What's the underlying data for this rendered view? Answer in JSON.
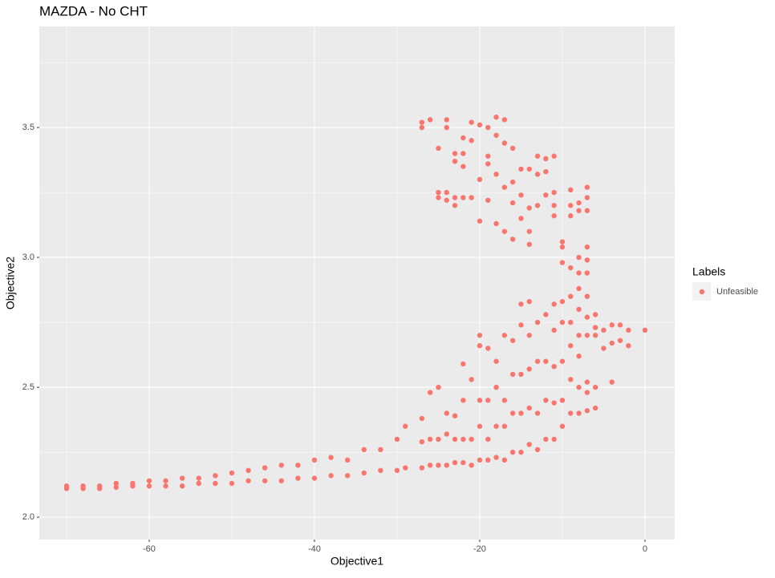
{
  "chart_data": {
    "type": "scatter",
    "title": "MAZDA - No CHT",
    "xlabel": "Objective1",
    "ylabel": "Objective2",
    "legend_title": "Labels",
    "legend_position": "right",
    "grid": true,
    "xlim": [
      -73.3,
      3.6
    ],
    "ylim": [
      1.914,
      3.889
    ],
    "xticks": [
      -60,
      -40,
      -20,
      0
    ],
    "yticks": [
      {
        "value": 2.0,
        "label": "2.0"
      },
      {
        "value": 2.5,
        "label": "2.5"
      },
      {
        "value": 3.0,
        "label": "3.0"
      },
      {
        "value": 3.5,
        "label": "3.5"
      }
    ],
    "xminor": [
      -70,
      -50,
      -30,
      -10
    ],
    "yminor": [
      2.25,
      2.75,
      3.25,
      3.75
    ],
    "series": [
      {
        "name": "Unfeasible",
        "color": "#F8766D",
        "x": [
          -70,
          -70,
          -68,
          -68,
          -66,
          -66,
          -64,
          -64,
          -62,
          -62,
          -60,
          -60,
          -58,
          -58,
          -56,
          -56,
          -54,
          -54,
          -52,
          -52,
          -50,
          -50,
          -48,
          -48,
          -46,
          -46,
          -44,
          -44,
          -42,
          -42,
          -40,
          -40,
          -38,
          -38,
          -36,
          -36,
          -34,
          -34,
          -32,
          -32,
          -30,
          -30,
          -29,
          -29,
          -27,
          -27,
          -27,
          -26,
          -26,
          -26,
          -25,
          -25,
          -25,
          -24,
          -24,
          -24,
          -23,
          -23,
          -23,
          -22,
          -22,
          -22,
          -22,
          -21,
          -21,
          -21,
          -20,
          -20,
          -20,
          -20,
          -20,
          -19,
          -19,
          -19,
          -19,
          -18,
          -18,
          -18,
          -18,
          -17,
          -17,
          -17,
          -17,
          -16,
          -16,
          -16,
          -16,
          -15,
          -15,
          -15,
          -15,
          -15,
          -14,
          -14,
          -14,
          -14,
          -14,
          -13,
          -13,
          -13,
          -13,
          -12,
          -12,
          -12,
          -12,
          -11,
          -11,
          -11,
          -11,
          -11,
          -10,
          -10,
          -10,
          -10,
          -10,
          -9,
          -9,
          -9,
          -9,
          -9,
          -8,
          -8,
          -8,
          -8,
          -8,
          -8,
          -7,
          -7,
          -7,
          -7,
          -7,
          -7,
          -6,
          -6,
          -6,
          -6,
          -6,
          -5,
          -5,
          -4,
          -4,
          -4,
          -3,
          -3,
          -2,
          -2,
          0,
          -27,
          -27,
          -26,
          -25,
          -25,
          -25,
          -24,
          -24,
          -24,
          -24,
          -23,
          -23,
          -23,
          -23,
          -22,
          -22,
          -22,
          -22,
          -21,
          -21,
          -21,
          -20,
          -20,
          -20,
          -19,
          -19,
          -19,
          -19,
          -18,
          -18,
          -18,
          -18,
          -17,
          -17,
          -17,
          -17,
          -16,
          -16,
          -16,
          -16,
          -15,
          -15,
          -15,
          -14,
          -14,
          -14,
          -14,
          -13,
          -13,
          -13,
          -12,
          -12,
          -12,
          -11,
          -11,
          -11,
          -11,
          -10,
          -10,
          -10,
          -9,
          -9,
          -9,
          -9,
          -8,
          -8,
          -8,
          -8,
          -7,
          -7,
          -7,
          -7,
          -7,
          -7
        ],
        "y": [
          2.11,
          2.12,
          2.11,
          2.12,
          2.11,
          2.12,
          2.115,
          2.13,
          2.12,
          2.13,
          2.12,
          2.14,
          2.12,
          2.14,
          2.12,
          2.15,
          2.13,
          2.15,
          2.13,
          2.16,
          2.13,
          2.17,
          2.14,
          2.18,
          2.14,
          2.19,
          2.14,
          2.2,
          2.15,
          2.2,
          2.15,
          2.22,
          2.16,
          2.23,
          2.16,
          2.22,
          2.17,
          2.26,
          2.18,
          2.26,
          2.18,
          2.3,
          2.19,
          2.35,
          2.19,
          2.29,
          2.38,
          2.2,
          2.3,
          2.48,
          2.2,
          2.3,
          2.5,
          2.2,
          2.32,
          2.4,
          2.21,
          2.3,
          2.39,
          2.21,
          2.3,
          2.45,
          2.59,
          2.2,
          2.3,
          2.53,
          2.22,
          2.35,
          2.45,
          2.66,
          2.7,
          2.22,
          2.3,
          2.45,
          2.65,
          2.23,
          2.35,
          2.5,
          2.6,
          2.22,
          2.35,
          2.45,
          2.7,
          2.25,
          2.4,
          2.55,
          2.68,
          2.25,
          2.4,
          2.55,
          2.74,
          2.82,
          2.28,
          2.42,
          2.57,
          2.7,
          2.83,
          2.26,
          2.4,
          2.6,
          2.75,
          2.3,
          2.45,
          2.6,
          2.78,
          2.3,
          2.44,
          2.58,
          2.72,
          2.82,
          2.35,
          2.45,
          2.6,
          2.75,
          2.83,
          2.4,
          2.53,
          2.66,
          2.75,
          2.85,
          2.4,
          2.5,
          2.62,
          2.7,
          2.8,
          2.88,
          2.41,
          2.48,
          2.52,
          2.7,
          2.77,
          2.85,
          2.42,
          2.5,
          2.7,
          2.73,
          2.78,
          2.65,
          2.72,
          2.52,
          2.67,
          2.74,
          2.68,
          2.74,
          2.66,
          2.72,
          2.72,
          3.5,
          3.52,
          3.53,
          3.42,
          3.23,
          3.25,
          3.53,
          3.5,
          3.22,
          3.25,
          3.4,
          3.37,
          3.23,
          3.2,
          3.46,
          3.4,
          3.35,
          3.23,
          3.52,
          3.45,
          3.23,
          3.51,
          3.3,
          3.14,
          3.5,
          3.39,
          3.36,
          3.22,
          3.54,
          3.47,
          3.32,
          3.13,
          3.53,
          3.44,
          3.27,
          3.1,
          3.42,
          3.29,
          3.21,
          3.07,
          3.34,
          3.24,
          3.15,
          3.34,
          3.19,
          3.1,
          3.05,
          3.39,
          3.32,
          3.2,
          3.38,
          3.33,
          3.24,
          3.39,
          3.25,
          3.2,
          3.16,
          3.06,
          2.98,
          3.04,
          3.26,
          3.2,
          3.16,
          2.96,
          3.21,
          3.18,
          3.0,
          2.94,
          3.27,
          3.23,
          3.18,
          3.04,
          2.99,
          2.94
        ]
      }
    ]
  }
}
